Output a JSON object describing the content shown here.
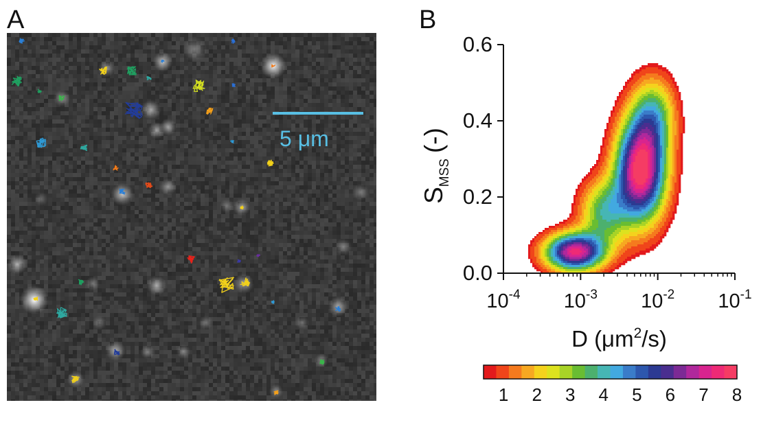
{
  "panel_a": {
    "letter": "A",
    "scale_bar_label": "5 μm",
    "scale_bar_color": "#58bfe4",
    "spots": [
      {
        "x": 398,
        "y": 96,
        "r": 9,
        "i": 0.95
      },
      {
        "x": 50,
        "y": 437,
        "r": 10,
        "i": 1.0
      },
      {
        "x": 237,
        "y": 90,
        "r": 7,
        "i": 0.7
      },
      {
        "x": 220,
        "y": 160,
        "r": 7,
        "i": 0.6
      },
      {
        "x": 245,
        "y": 185,
        "r": 6,
        "i": 0.55
      },
      {
        "x": 228,
        "y": 190,
        "r": 6,
        "i": 0.5
      },
      {
        "x": 178,
        "y": 283,
        "r": 8,
        "i": 0.7
      },
      {
        "x": 245,
        "y": 272,
        "r": 6,
        "i": 0.45
      },
      {
        "x": 352,
        "y": 302,
        "r": 6,
        "i": 0.55
      },
      {
        "x": 155,
        "y": 100,
        "r": 6,
        "i": 0.45
      },
      {
        "x": 90,
        "y": 143,
        "r": 6,
        "i": 0.45
      },
      {
        "x": 25,
        "y": 385,
        "r": 7,
        "i": 0.6
      },
      {
        "x": 228,
        "y": 416,
        "r": 7,
        "i": 0.6
      },
      {
        "x": 355,
        "y": 413,
        "r": 7,
        "i": 0.55
      },
      {
        "x": 492,
        "y": 447,
        "r": 7,
        "i": 0.6
      },
      {
        "x": 168,
        "y": 511,
        "r": 7,
        "i": 0.6
      },
      {
        "x": 267,
        "y": 512,
        "r": 5,
        "i": 0.4
      },
      {
        "x": 215,
        "y": 513,
        "r": 5,
        "i": 0.4
      },
      {
        "x": 402,
        "y": 570,
        "r": 5,
        "i": 0.4
      },
      {
        "x": 110,
        "y": 553,
        "r": 6,
        "i": 0.5
      },
      {
        "x": 468,
        "y": 525,
        "r": 5,
        "i": 0.4
      },
      {
        "x": 500,
        "y": 360,
        "r": 6,
        "i": 0.35
      },
      {
        "x": 525,
        "y": 280,
        "r": 6,
        "i": 0.35
      },
      {
        "x": 283,
        "y": 72,
        "r": 9,
        "i": 0.35
      },
      {
        "x": 135,
        "y": 413,
        "r": 5,
        "i": 0.35
      },
      {
        "x": 145,
        "y": 470,
        "r": 5,
        "i": 0.3
      },
      {
        "x": 300,
        "y": 470,
        "r": 5,
        "i": 0.3
      },
      {
        "x": 330,
        "y": 300,
        "r": 5,
        "i": 0.3
      },
      {
        "x": 60,
        "y": 290,
        "r": 5,
        "i": 0.25
      },
      {
        "x": 440,
        "y": 470,
        "r": 5,
        "i": 0.3
      }
    ],
    "tracks": [
      {
        "x": 32,
        "y": 60,
        "c": "#2a7fd6",
        "s": 5
      },
      {
        "x": 24,
        "y": 118,
        "c": "#1fa060",
        "s": 9
      },
      {
        "x": 58,
        "y": 133,
        "c": "#1fa060",
        "s": 4
      },
      {
        "x": 90,
        "y": 143,
        "c": "#3ab54a",
        "s": 5
      },
      {
        "x": 150,
        "y": 103,
        "c": "#f2d11a",
        "s": 7
      },
      {
        "x": 192,
        "y": 103,
        "c": "#1fa060",
        "s": 8
      },
      {
        "x": 217,
        "y": 114,
        "c": "#2ea8a0",
        "s": 4
      },
      {
        "x": 237,
        "y": 89,
        "c": "#2a7fd6",
        "s": 3
      },
      {
        "x": 290,
        "y": 125,
        "c": "#d4e021",
        "s": 11
      },
      {
        "x": 340,
        "y": 60,
        "c": "#2a6fd6",
        "s": 4
      },
      {
        "x": 340,
        "y": 124,
        "c": "#2a6fd6",
        "s": 3
      },
      {
        "x": 398,
        "y": 96,
        "c": "#f07a1a",
        "s": 3
      },
      {
        "x": 195,
        "y": 160,
        "c": "#223c9a",
        "s": 16
      },
      {
        "x": 305,
        "y": 162,
        "c": "#f5a01a",
        "s": 6
      },
      {
        "x": 60,
        "y": 208,
        "c": "#2e9ad6",
        "s": 9
      },
      {
        "x": 122,
        "y": 215,
        "c": "#2ea8a0",
        "s": 6
      },
      {
        "x": 338,
        "y": 206,
        "c": "#2e9ad6",
        "s": 3
      },
      {
        "x": 394,
        "y": 238,
        "c": "#f2d11a",
        "s": 6
      },
      {
        "x": 168,
        "y": 245,
        "c": "#f07a1a",
        "s": 5
      },
      {
        "x": 217,
        "y": 270,
        "c": "#e34b1a",
        "s": 6
      },
      {
        "x": 178,
        "y": 279,
        "c": "#2a7fd6",
        "s": 5
      },
      {
        "x": 352,
        "y": 302,
        "c": "#f2d11a",
        "s": 3
      },
      {
        "x": 278,
        "y": 378,
        "c": "#e8221a",
        "s": 7
      },
      {
        "x": 376,
        "y": 373,
        "c": "#6a2ea0",
        "s": 3
      },
      {
        "x": 348,
        "y": 380,
        "c": "#3b3aa8",
        "s": 3
      },
      {
        "x": 52,
        "y": 435,
        "c": "#f5d21a",
        "s": 4
      },
      {
        "x": 118,
        "y": 411,
        "c": "#1fa060",
        "s": 5
      },
      {
        "x": 90,
        "y": 455,
        "c": "#2ea8a0",
        "s": 10
      },
      {
        "x": 330,
        "y": 415,
        "c": "#f2d11a",
        "s": 14
      },
      {
        "x": 357,
        "y": 410,
        "c": "#f2d11a",
        "s": 9
      },
      {
        "x": 398,
        "y": 440,
        "c": "#2e9ad6",
        "s": 3
      },
      {
        "x": 492,
        "y": 450,
        "c": "#2a7fd6",
        "s": 5
      },
      {
        "x": 170,
        "y": 513,
        "c": "#223c9a",
        "s": 5
      },
      {
        "x": 110,
        "y": 553,
        "c": "#f2d11a",
        "s": 7
      },
      {
        "x": 402,
        "y": 572,
        "c": "#f5a01a",
        "s": 4
      },
      {
        "x": 470,
        "y": 527,
        "c": "#3ab54a",
        "s": 5
      }
    ]
  },
  "panel_b": {
    "letter": "B",
    "chart_data": {
      "type": "heatmap",
      "title": "",
      "xlabel": "D (μm²/s)",
      "ylabel": "S_MSS (-)",
      "ylabel_main": "S",
      "ylabel_sub": "MSS",
      "ylabel_unit": "(-)",
      "x_scale": "log",
      "x_ticks": [
        {
          "value": 0.0001,
          "base": "10",
          "exp": "-4"
        },
        {
          "value": 0.001,
          "base": "10",
          "exp": "-3"
        },
        {
          "value": 0.01,
          "base": "10",
          "exp": "-2"
        },
        {
          "value": 0.1,
          "base": "10",
          "exp": "-1"
        }
      ],
      "xlim": [
        0.0001,
        0.1
      ],
      "ylim": [
        0,
        0.6
      ],
      "y_ticks": [
        "0.0",
        "0.2",
        "0.4",
        "0.6"
      ],
      "y_tick_values": [
        0.0,
        0.2,
        0.4,
        0.6
      ],
      "density_peaks": [
        {
          "log10_D": -2.22,
          "S_MSS": 0.27,
          "sigma_logD": 0.23,
          "sigma_S": 0.095,
          "height": 8
        },
        {
          "log10_D": -3.08,
          "S_MSS": 0.055,
          "sigma_logD": 0.27,
          "sigma_S": 0.035,
          "height": 7.3
        },
        {
          "log10_D": -2.7,
          "S_MSS": 0.16,
          "sigma_logD": 0.22,
          "sigma_S": 0.06,
          "height": 3.5
        },
        {
          "log10_D": -2.05,
          "S_MSS": 0.42,
          "sigma_logD": 0.2,
          "sigma_S": 0.07,
          "height": 3
        }
      ],
      "contour_min_level": 0.6,
      "colorbar": {
        "min": 0.4,
        "max": 8,
        "ticks": [
          "1",
          "2",
          "3",
          "4",
          "5",
          "6",
          "7",
          "8"
        ],
        "tick_values": [
          1,
          2,
          3,
          4,
          5,
          6,
          7,
          8
        ],
        "colors": [
          "#e31a1c",
          "#f0451a",
          "#f57a1e",
          "#f7a821",
          "#f5d21d",
          "#dde21f",
          "#a8d327",
          "#69bd32",
          "#4cb06e",
          "#46b6b4",
          "#42a9e0",
          "#3a7cc9",
          "#2d57ad",
          "#2c3a92",
          "#4a2e8f",
          "#7c2a95",
          "#b0289c",
          "#d8248f",
          "#ee2a76",
          "#f53c64"
        ]
      }
    }
  }
}
